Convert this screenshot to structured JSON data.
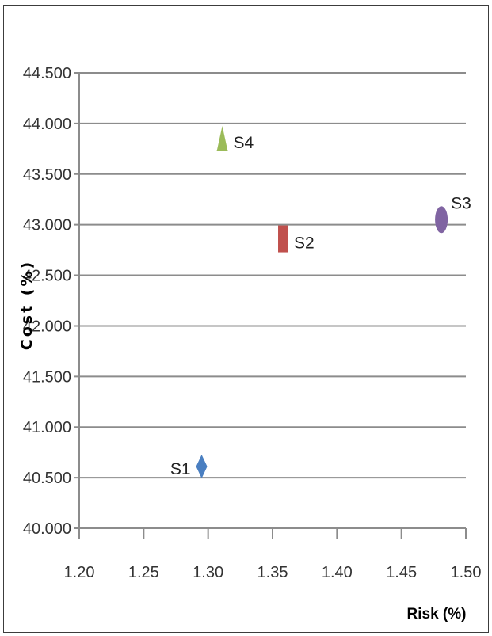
{
  "chart_data": {
    "type": "scatter",
    "title": "",
    "xlabel": "Risk (%)",
    "ylabel": "Cost (%)",
    "xlim": [
      1.2,
      1.5
    ],
    "ylim": [
      40.0,
      44.5
    ],
    "x_ticks": [
      "1.20",
      "1.25",
      "1.30",
      "1.35",
      "1.40",
      "1.45",
      "1.50"
    ],
    "y_ticks": [
      "40.000",
      "40.500",
      "41.000",
      "41.500",
      "42.000",
      "42.500",
      "43.000",
      "43.500",
      "44.000",
      "44.500"
    ],
    "grid": "horizontal",
    "legend": "none",
    "points": [
      {
        "label": "S1",
        "x": 1.295,
        "y": 40.61,
        "marker": "diamond",
        "color": "#4a7fc1",
        "label_side": "left"
      },
      {
        "label": "S2",
        "x": 1.358,
        "y": 42.86,
        "marker": "square",
        "color": "#c0504d",
        "label_side": "right"
      },
      {
        "label": "S3",
        "x": 1.481,
        "y": 43.05,
        "marker": "circle",
        "color": "#8064a2",
        "label_side": "top-right"
      },
      {
        "label": "S4",
        "x": 1.311,
        "y": 43.85,
        "marker": "triangle",
        "color": "#9bbb59",
        "label_side": "right"
      }
    ]
  }
}
